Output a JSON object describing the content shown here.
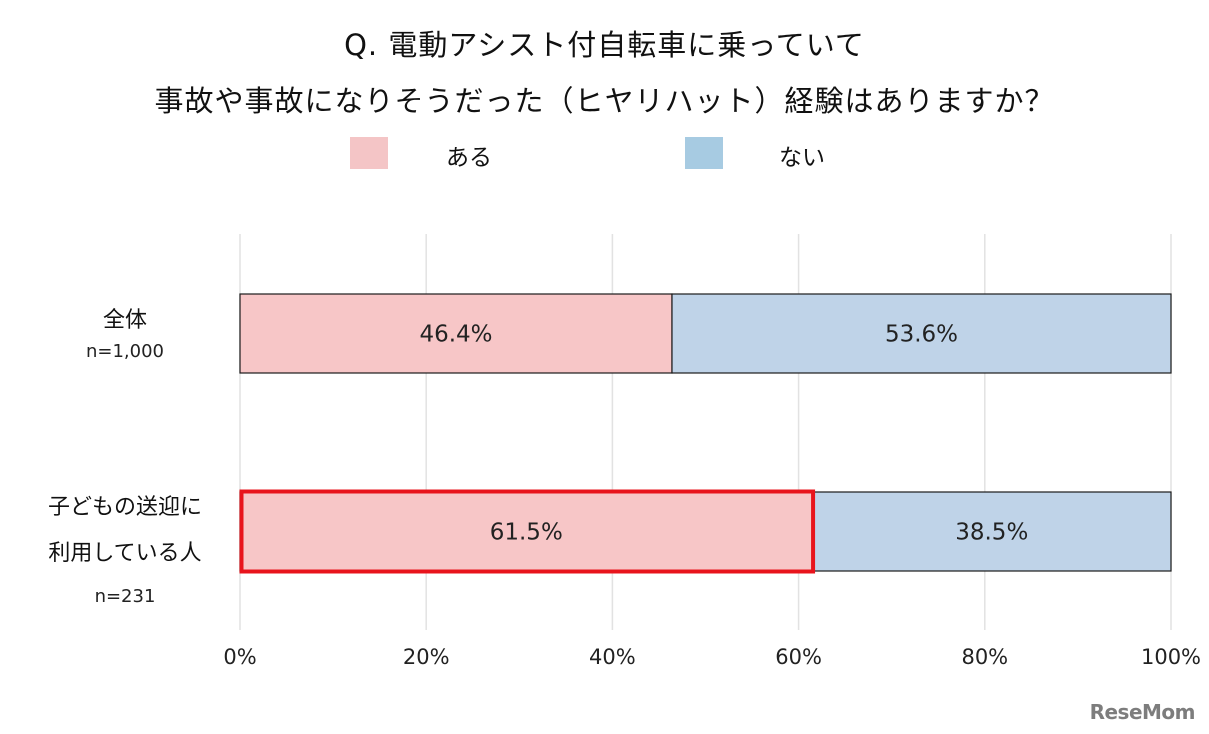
{
  "chart_data": {
    "type": "bar",
    "orientation": "horizontal",
    "stacked": true,
    "title": [
      "Q. 電動アシスト付自転車に乗っていて",
      "事故や事故になりそうだった（ヒヤリハット）経験はありますか？"
    ],
    "categories": [
      {
        "label_lines": [
          "全体"
        ],
        "n": "n=1,000",
        "highlighted": false
      },
      {
        "label_lines": [
          "子どもの送迎に",
          "利用している人"
        ],
        "n": "n=231",
        "highlighted": true
      }
    ],
    "series": [
      {
        "name": "ある",
        "color": "#f7c6c7",
        "legend_color": "#f4c5c6",
        "values": [
          46.4,
          61.5
        ],
        "labels": [
          "46.4%",
          "61.5%"
        ]
      },
      {
        "name": "ない",
        "color": "#bfd3e8",
        "legend_color": "#a7cbe2",
        "values": [
          53.6,
          38.5
        ],
        "labels": [
          "53.6%",
          "38.5%"
        ]
      }
    ],
    "xlim": [
      0,
      100
    ],
    "xticks": [
      0,
      20,
      40,
      60,
      80,
      100
    ],
    "xtick_labels": [
      "0%",
      "20%",
      "40%",
      "60%",
      "80%",
      "100%"
    ],
    "grid": true,
    "legend_position": "top",
    "highlight_color": "#e8141c"
  },
  "watermark": "ReseMom"
}
